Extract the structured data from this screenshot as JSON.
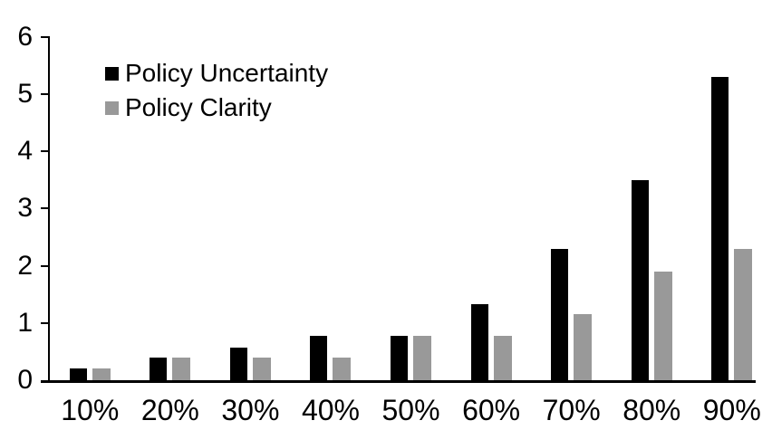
{
  "chart_data": {
    "type": "bar",
    "categories": [
      "10%",
      "20%",
      "30%",
      "40%",
      "50%",
      "60%",
      "70%",
      "80%",
      "90%"
    ],
    "series": [
      {
        "name": "Policy Uncertainty",
        "color": "#000000",
        "values": [
          0.2,
          0.4,
          0.57,
          0.77,
          0.78,
          1.33,
          2.3,
          3.5,
          5.3
        ]
      },
      {
        "name": "Policy Clarity",
        "color": "#999999",
        "values": [
          0.2,
          0.4,
          0.4,
          0.4,
          0.78,
          0.78,
          1.15,
          1.9,
          2.3
        ]
      }
    ],
    "ylim": [
      0,
      6
    ],
    "yticks": [
      0,
      1,
      2,
      3,
      4,
      5,
      6
    ],
    "grid": false,
    "legend_position": "top-left-inside",
    "axis_color": "#000000",
    "background_color": "#ffffff"
  }
}
